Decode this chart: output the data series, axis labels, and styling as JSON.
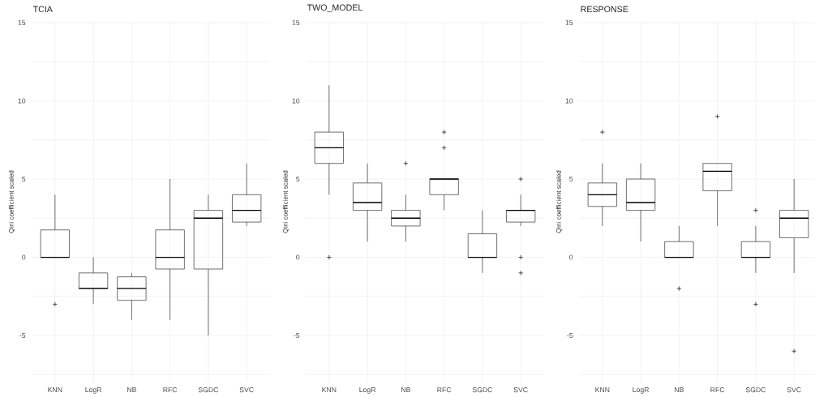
{
  "chart_data": [
    {
      "type": "box",
      "title": "TCIA",
      "ylabel": "Qini coefficient scaled",
      "categories": [
        "KNN",
        "LogR",
        "NB",
        "RFC",
        "SGDC",
        "SVC"
      ],
      "ylim": [
        -8,
        15.1
      ],
      "yticks": [
        {
          "value": -7.5,
          "label": null
        },
        -5,
        {
          "value": -2.5,
          "label": null
        },
        0,
        {
          "value": 2.5,
          "label": null
        },
        5,
        {
          "value": 7.5,
          "label": null
        },
        10,
        {
          "value": 12.5,
          "label": null
        },
        15
      ],
      "grid": true,
      "marker": "cross",
      "series": [
        {
          "color": "#4d4d4d",
          "boxes": [
            {
              "low": 0,
              "q1": 0,
              "median": 0,
              "q3": 1.75,
              "high": 4,
              "outliers": [
                -3
              ]
            },
            {
              "low": -3,
              "q1": -2,
              "median": -2,
              "q3": -1,
              "high": 0
            },
            {
              "low": -4,
              "q1": -2.75,
              "median": -2,
              "q3": -1.25,
              "high": -1
            },
            {
              "low": -4,
              "q1": -0.75,
              "median": 0,
              "q3": 1.75,
              "high": 5
            },
            {
              "low": -5,
              "q1": -0.75,
              "median": 2.5,
              "q3": 3,
              "high": 4
            },
            {
              "low": 2,
              "q1": 2.25,
              "median": 3,
              "q3": 4,
              "high": 6
            }
          ]
        }
      ]
    },
    {
      "type": "box",
      "title": "TWO_MODEL",
      "ylabel": "Qini coefficient scaled",
      "categories": [
        "KNN",
        "LogR",
        "NB",
        "RFC",
        "SGDC",
        "SVC"
      ],
      "ylim": [
        -8,
        15.1
      ],
      "yticks": [
        {
          "value": -7.5,
          "label": null
        },
        -5,
        {
          "value": -2.5,
          "label": null
        },
        0,
        {
          "value": 2.5,
          "label": null
        },
        5,
        {
          "value": 7.5,
          "label": null
        },
        10,
        {
          "value": 12.5,
          "label": null
        },
        15
      ],
      "grid": true,
      "marker": "cross",
      "series": [
        {
          "color": "#4d4d4d",
          "boxes": [
            {
              "low": 4,
              "q1": 6,
              "median": 7,
              "q3": 8,
              "high": 11,
              "outliers": [
                0
              ]
            },
            {
              "low": 1,
              "q1": 3,
              "median": 3.5,
              "q3": 4.75,
              "high": 6
            },
            {
              "low": 1,
              "q1": 2,
              "median": 2.5,
              "q3": 3,
              "high": 4,
              "outliers": [
                6
              ]
            },
            {
              "low": 3,
              "q1": 4,
              "median": 5,
              "q3": 5,
              "high": 5,
              "outliers": [
                7,
                8
              ]
            },
            {
              "low": -1,
              "q1": 0,
              "median": 0,
              "q3": 1.5,
              "high": 3
            },
            {
              "low": 2,
              "q1": 2.25,
              "median": 3,
              "q3": 3,
              "high": 4,
              "outliers": [
                5,
                0,
                -1
              ]
            }
          ]
        }
      ]
    },
    {
      "type": "box",
      "title": "RESPONSE",
      "ylabel": "Qini coefficient scaled",
      "categories": [
        "KNN",
        "LogR",
        "NB",
        "RFC",
        "SGDC",
        "SVC"
      ],
      "ylim": [
        -8,
        15.1
      ],
      "yticks": [
        {
          "value": -7.5,
          "label": null
        },
        -5,
        {
          "value": -2.5,
          "label": null
        },
        0,
        {
          "value": 2.5,
          "label": null
        },
        5,
        {
          "value": 7.5,
          "label": null
        },
        10,
        {
          "value": 12.5,
          "label": null
        },
        15
      ],
      "grid": true,
      "marker": "cross",
      "series": [
        {
          "color": "#4d4d4d",
          "boxes": [
            {
              "low": 2,
              "q1": 3.25,
              "median": 4,
              "q3": 4.75,
              "high": 6,
              "outliers": [
                8
              ]
            },
            {
              "low": 1,
              "q1": 3,
              "median": 3.5,
              "q3": 5,
              "high": 6
            },
            {
              "low": 0,
              "q1": 0,
              "median": 0,
              "q3": 1,
              "high": 2,
              "outliers": [
                -2
              ]
            },
            {
              "low": 2,
              "q1": 4.25,
              "median": 5.5,
              "q3": 6,
              "high": 6,
              "outliers": [
                9
              ]
            },
            {
              "low": -1,
              "q1": 0,
              "median": 0,
              "q3": 1,
              "high": 2,
              "outliers": [
                -3,
                3
              ]
            },
            {
              "low": -1,
              "q1": 1.25,
              "median": 2.5,
              "q3": 3,
              "high": 5,
              "outliers": [
                -6
              ]
            }
          ]
        }
      ]
    }
  ]
}
